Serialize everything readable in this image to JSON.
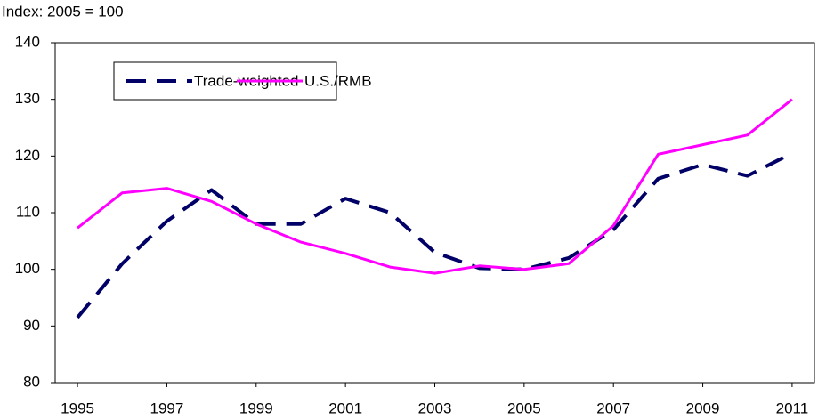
{
  "chart_data": {
    "type": "line",
    "y_label": "Index: 2005 = 100",
    "x": [
      1995,
      1996,
      1997,
      1998,
      1999,
      2000,
      2001,
      2002,
      2003,
      2004,
      2005,
      2006,
      2007,
      2008,
      2009,
      2010,
      2011
    ],
    "series": [
      {
        "name": "Trade-weighted",
        "color": "#000066",
        "dash": true,
        "values": [
          91.5,
          101,
          108.5,
          114,
          108,
          108,
          112.5,
          110,
          103,
          100.2,
          100,
          102,
          107,
          116,
          118.5,
          116.5,
          120.5
        ]
      },
      {
        "name": "U.S./RMB",
        "color": "#ff00ff",
        "dash": false,
        "values": [
          107.3,
          113.5,
          114.3,
          112,
          108,
          104.8,
          102.8,
          100.4,
          99.3,
          100.6,
          100,
          101,
          107.7,
          120.3,
          122,
          123.7,
          130
        ]
      }
    ],
    "xlim": [
      1994.5,
      2011.5
    ],
    "xticks": [
      1995,
      1997,
      1999,
      2001,
      2003,
      2005,
      2007,
      2009,
      2011
    ],
    "ylim": [
      80,
      140
    ],
    "yticks": [
      80,
      90,
      100,
      110,
      120,
      130,
      140
    ],
    "grid": false,
    "legend": "upper-left"
  }
}
